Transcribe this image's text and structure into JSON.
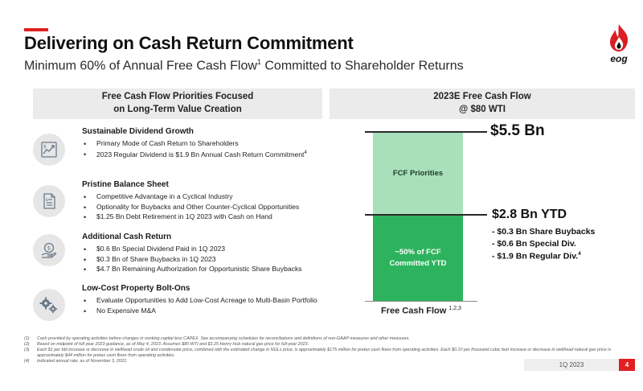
{
  "header": {
    "title": "Delivering on Cash Return Commitment",
    "subtitle_main": "Minimum 60% of Annual Free Cash Flow",
    "subtitle_sup": "1",
    "subtitle_rest": " Committed to Shareholder Returns"
  },
  "logo": {
    "text": "eog",
    "icon": "flame-icon"
  },
  "left_panel": {
    "header_line1": "Free Cash Flow Priorities Focused",
    "header_line2": "on Long-Term Value Creation",
    "sections": [
      {
        "icon": "growth-chart-icon",
        "title": "Sustainable Dividend Growth",
        "bullets": [
          "Primary Mode of Cash Return to Shareholders",
          "2023 Regular Dividend is $1.9 Bn Annual Cash Return Commitment"
        ],
        "bullet_sup": "4"
      },
      {
        "icon": "balance-sheet-icon",
        "title": "Pristine Balance Sheet",
        "bullets": [
          "Competitive Advantage in a Cyclical Industry",
          "Optionality for Buybacks and Other Counter-Cyclical Opportunities",
          "$1.25 Bn Debt Retirement in 1Q 2023 with Cash on Hand"
        ]
      },
      {
        "icon": "cash-hand-icon",
        "title": "Additional Cash Return",
        "bullets": [
          "$0.6 Bn Special Dividend Paid in 1Q 2023",
          "$0.3 Bn of Share Buybacks in 1Q 2023",
          "$4.7 Bn Remaining Authorization for Opportunistic Share Buybacks"
        ]
      },
      {
        "icon": "gears-icon",
        "title": "Low-Cost Property Bolt-Ons",
        "bullets": [
          "Evaluate Opportunities to Add Low-Cost Acreage to Multi-Basin Portfolio",
          "No Expensive M&A"
        ]
      }
    ]
  },
  "right_panel": {
    "header_line1": "2023E Free Cash Flow",
    "header_line2": "@ $80 WTI"
  },
  "chart_data": {
    "type": "bar",
    "categories": [
      "Free Cash Flow"
    ],
    "series": [
      {
        "name": "~50% of FCF Committed YTD",
        "values": [
          2.8
        ]
      },
      {
        "name": "FCF Priorities",
        "values": [
          2.7
        ]
      }
    ],
    "total_label": "$5.5 Bn",
    "ytd_label": "$2.8 Bn YTD",
    "ytd_breakdown": [
      "- $0.3 Bn Share Buybacks",
      "- $0.6 Bn Special Div.",
      "- $1.9 Bn Regular Div."
    ],
    "ytd_breakdown_last_sup": "4",
    "segment_top_label": "FCF Priorities",
    "segment_bottom_label_line1": "~50% of FCF",
    "segment_bottom_label_line2": "Committed YTD",
    "xlabel": "Free Cash Flow",
    "xlabel_sup": "1,2,3",
    "colors": {
      "top": "#a8e0bb",
      "bottom": "#2db35d"
    }
  },
  "footnotes": [
    {
      "num": "(1)",
      "text": "Cash provided by operating activities before changes in working capital less CAPEX. See accompanying schedules for reconciliations and definitions of non-GAAP measures and other measures."
    },
    {
      "num": "(2)",
      "text": "Based on midpoint of full year 2023 guidance, as of May 4, 2023. Assumes $80 WTI and $3.25 Henry Hub natural gas price for full-year 2023."
    },
    {
      "num": "(3)",
      "text": "Each $1 per bbl increase or decrease in wellhead crude oil and condensate price, combined with the estimated change in NGLs price, is approximately $175 million for pretax cash flows from operating activities. Each $0.10 per thousand cubic feet increase or decrease in wellhead natural gas price is approximately $44 million for pretax cash flows from operating activities."
    },
    {
      "num": "(4)",
      "text": "Indicated annual rate, as of November 3, 2022."
    }
  ],
  "footer": {
    "date": "1Q 2023",
    "page": "4"
  },
  "colors": {
    "accent": "#e02020",
    "green_dark": "#2db35d",
    "green_light": "#a8e0bb"
  }
}
